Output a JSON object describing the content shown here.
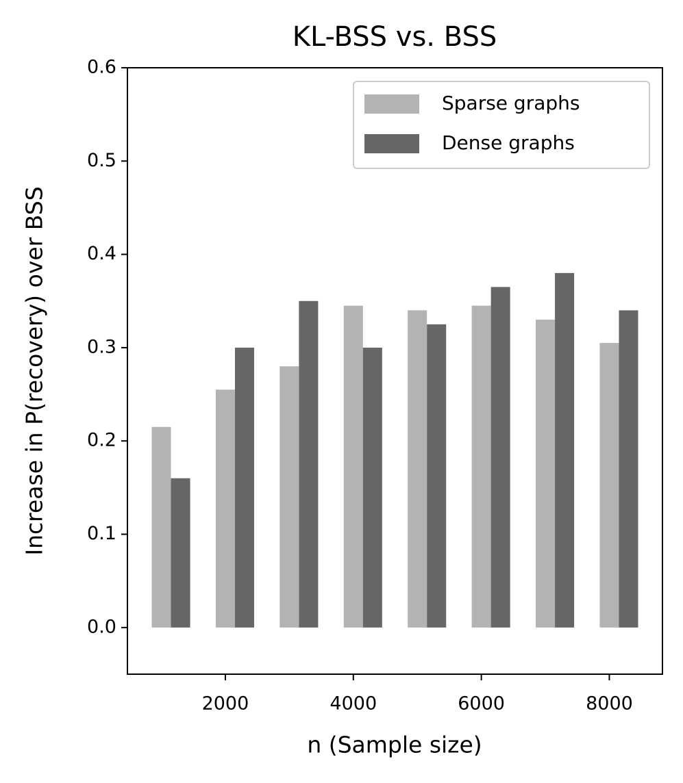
{
  "chart_data": {
    "type": "bar",
    "title": "KL-BSS vs. BSS",
    "xlabel": "n (Sample size)",
    "ylabel": "Increase in P(recovery) over BSS",
    "x": [
      1000,
      2000,
      3000,
      4000,
      5000,
      6000,
      7000,
      8000
    ],
    "series": [
      {
        "name": "Sparse graphs",
        "color": "#b3b3b3",
        "values": [
          0.215,
          0.255,
          0.28,
          0.345,
          0.34,
          0.345,
          0.33,
          0.305
        ]
      },
      {
        "name": "Dense graphs",
        "color": "#666666",
        "values": [
          0.16,
          0.3,
          0.35,
          0.3,
          0.325,
          0.365,
          0.38,
          0.34
        ]
      }
    ],
    "xlim": [
      470,
      8830
    ],
    "xticks": [
      2000,
      4000,
      6000,
      8000
    ],
    "ylim": [
      -0.05,
      0.6
    ],
    "yticks": [
      {
        "value": 0,
        "label": "0.0"
      },
      0.1,
      0.2,
      0.3,
      0.4,
      0.5,
      0.6
    ],
    "legend": "upper right",
    "grid": false
  }
}
